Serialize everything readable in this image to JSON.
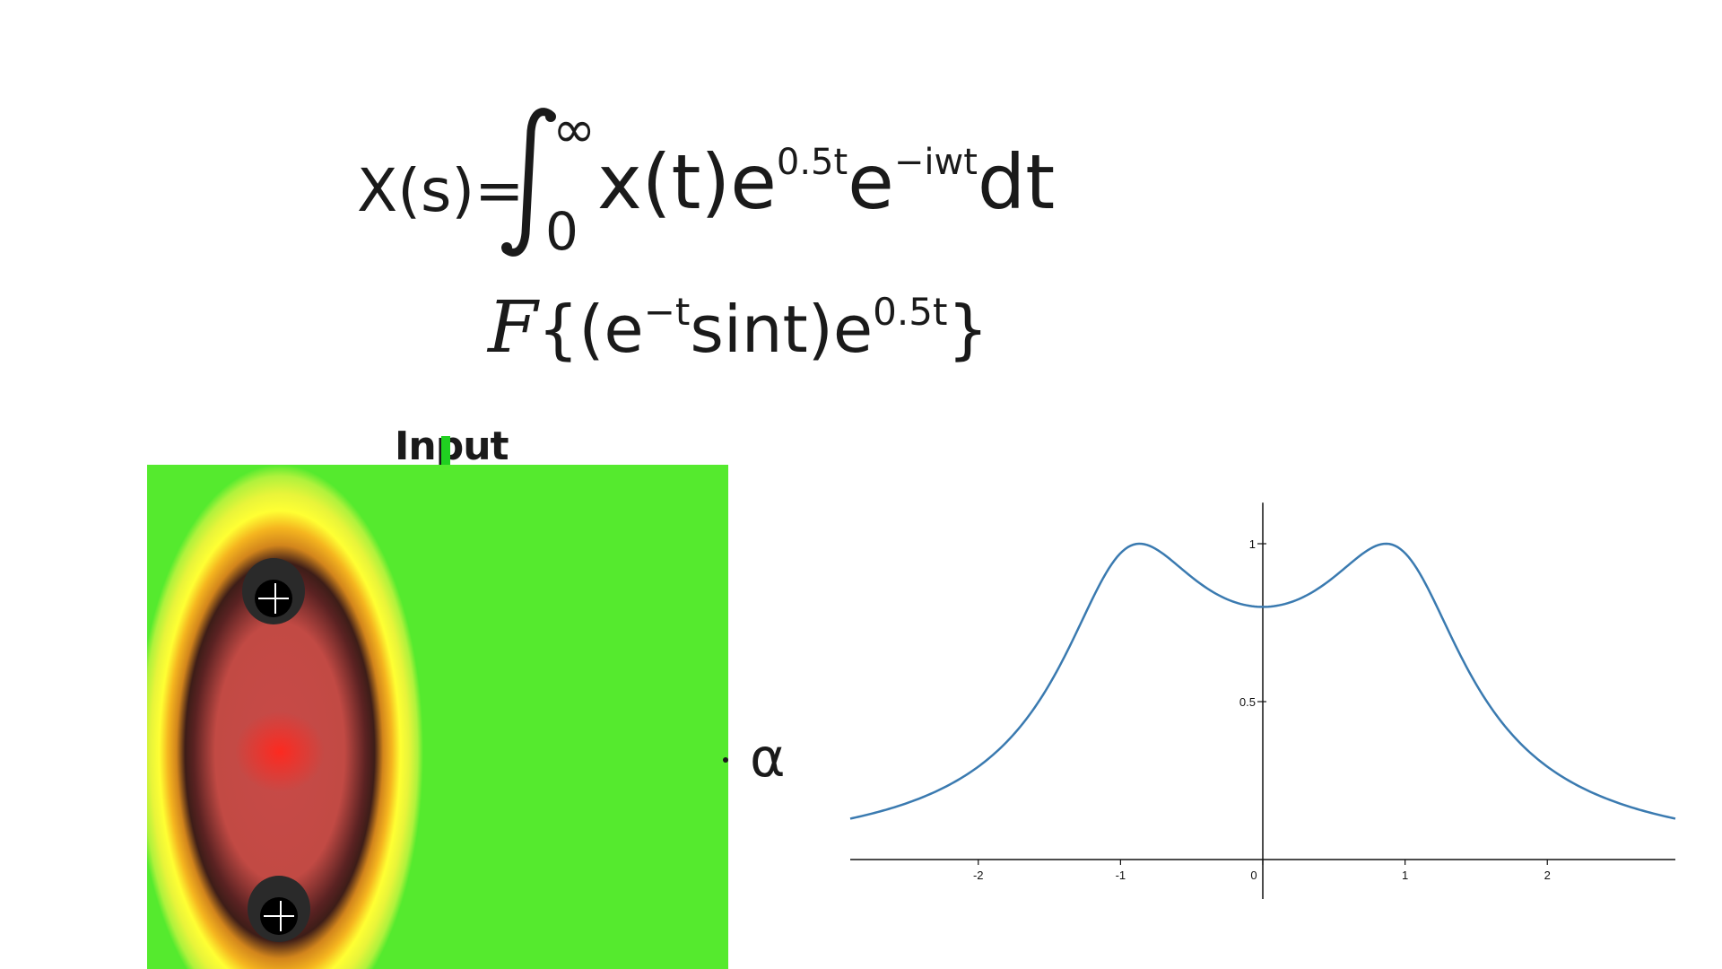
{
  "formula_laplace": {
    "lhs": "X(s)=",
    "integral_upper": "∞",
    "integral_lower": "0",
    "body_1": "x(t)e",
    "exp_1": "0.5t",
    "body_2": "e",
    "exp_2": "−iwt",
    "body_3": "dt"
  },
  "formula_fourier": {
    "operator": "F",
    "part_1": "{(e",
    "exp_1": "−t",
    "part_2": "sint)e",
    "exp_2": "0.5t",
    "part_3": "}"
  },
  "heatmap": {
    "title": "Input",
    "axis_label": "α",
    "colors": {
      "center": "#ff2a1e",
      "ring_dark": "#3d1d18",
      "yellow": "#ffff33",
      "edge": "#55ea2e"
    }
  },
  "chart_data": {
    "type": "line",
    "function": "1/sqrt((w^2 - 0.75)^2 + 1)",
    "x_range": [
      -2.9,
      2.9
    ],
    "y_range": [
      0,
      1.1
    ],
    "x_ticks": [
      -2,
      -1,
      0,
      1,
      2
    ],
    "y_ticks": [
      0.5,
      1
    ],
    "x_tick_labels": [
      "-2",
      "-1",
      "0",
      "1",
      "2"
    ],
    "y_tick_labels": [
      "0.5",
      "1"
    ],
    "series": [
      {
        "color": "#3a7ab0",
        "x": [
          -2.9,
          -2.5,
          -2,
          -1.5,
          -1.2,
          -1,
          -0.866,
          -0.6,
          -0.3,
          0,
          0.3,
          0.6,
          0.866,
          1,
          1.2,
          1.5,
          2,
          2.5,
          2.9
        ],
        "y": [
          0.133,
          0.183,
          0.304,
          0.575,
          0.822,
          0.97,
          1.0,
          0.917,
          0.839,
          0.8,
          0.839,
          0.917,
          1.0,
          0.97,
          0.822,
          0.575,
          0.304,
          0.183,
          0.133
        ]
      }
    ]
  }
}
